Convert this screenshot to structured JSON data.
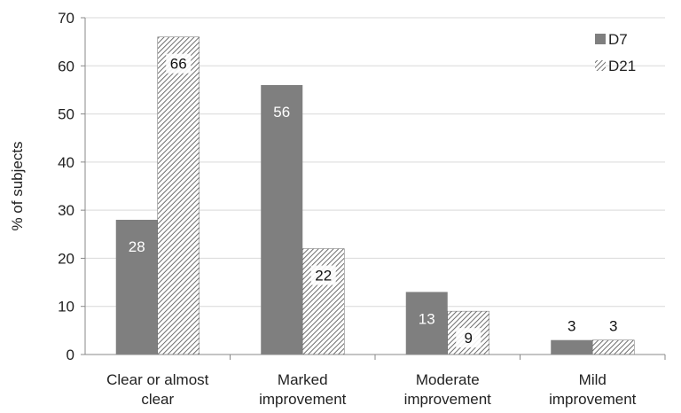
{
  "chart_data": {
    "type": "bar",
    "categories": [
      [
        "Clear or almost",
        "clear"
      ],
      [
        "Marked",
        "improvement"
      ],
      [
        "Moderate",
        "improvement"
      ],
      [
        "Mild",
        "improvement"
      ]
    ],
    "series": [
      {
        "name": "D7",
        "values": [
          28,
          56,
          13,
          3
        ],
        "color": "#7f7f7f",
        "pattern": "solid"
      },
      {
        "name": "D21",
        "values": [
          66,
          22,
          9,
          3
        ],
        "color": "#7f7f7f",
        "pattern": "diagonal-hatch"
      }
    ],
    "title": "",
    "xlabel": "",
    "ylabel": "% of subjects",
    "ylim": [
      0,
      70
    ],
    "yticks": [
      0,
      10,
      20,
      30,
      40,
      50,
      60,
      70
    ],
    "grid": true,
    "legend_position": "top-right",
    "data_labels": true
  }
}
